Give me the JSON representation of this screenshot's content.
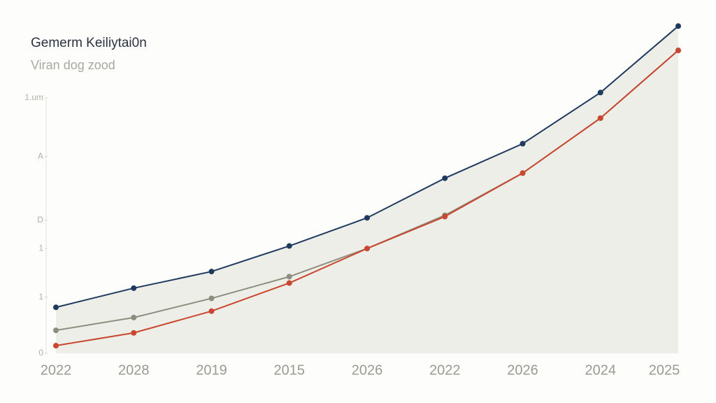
{
  "chart_data": {
    "type": "line",
    "title": "Gemerm Keiliytai0n",
    "subtitle": "Viran dog zood",
    "categories": [
      "2022",
      "2028",
      "2019",
      "2015",
      "2026",
      "2022",
      "2026",
      "2024",
      "2025"
    ],
    "series": [
      {
        "color": "#1f3a5f",
        "values": [
          18,
          25.5,
          32,
          42,
          53,
          68.5,
          82,
          102,
          128
        ]
      },
      {
        "color": "#8e8e80",
        "values": [
          9,
          14,
          21.5,
          30,
          41,
          54,
          70.5,
          92,
          118.5
        ]
      },
      {
        "color": "#c9462f",
        "values": [
          3,
          8,
          16.5,
          27.5,
          41,
          53.5,
          70.5,
          92,
          118.5
        ]
      }
    ],
    "ylim": [
      0,
      130
    ],
    "yticks": [
      0,
      {
        "value": 22,
        "label": "1"
      },
      {
        "value": 41,
        "label": "1"
      },
      {
        "value": 52,
        "label": "D"
      },
      {
        "value": 77,
        "label": "A"
      },
      {
        "value": 100,
        "label": "1.um"
      }
    ],
    "area": true
  }
}
